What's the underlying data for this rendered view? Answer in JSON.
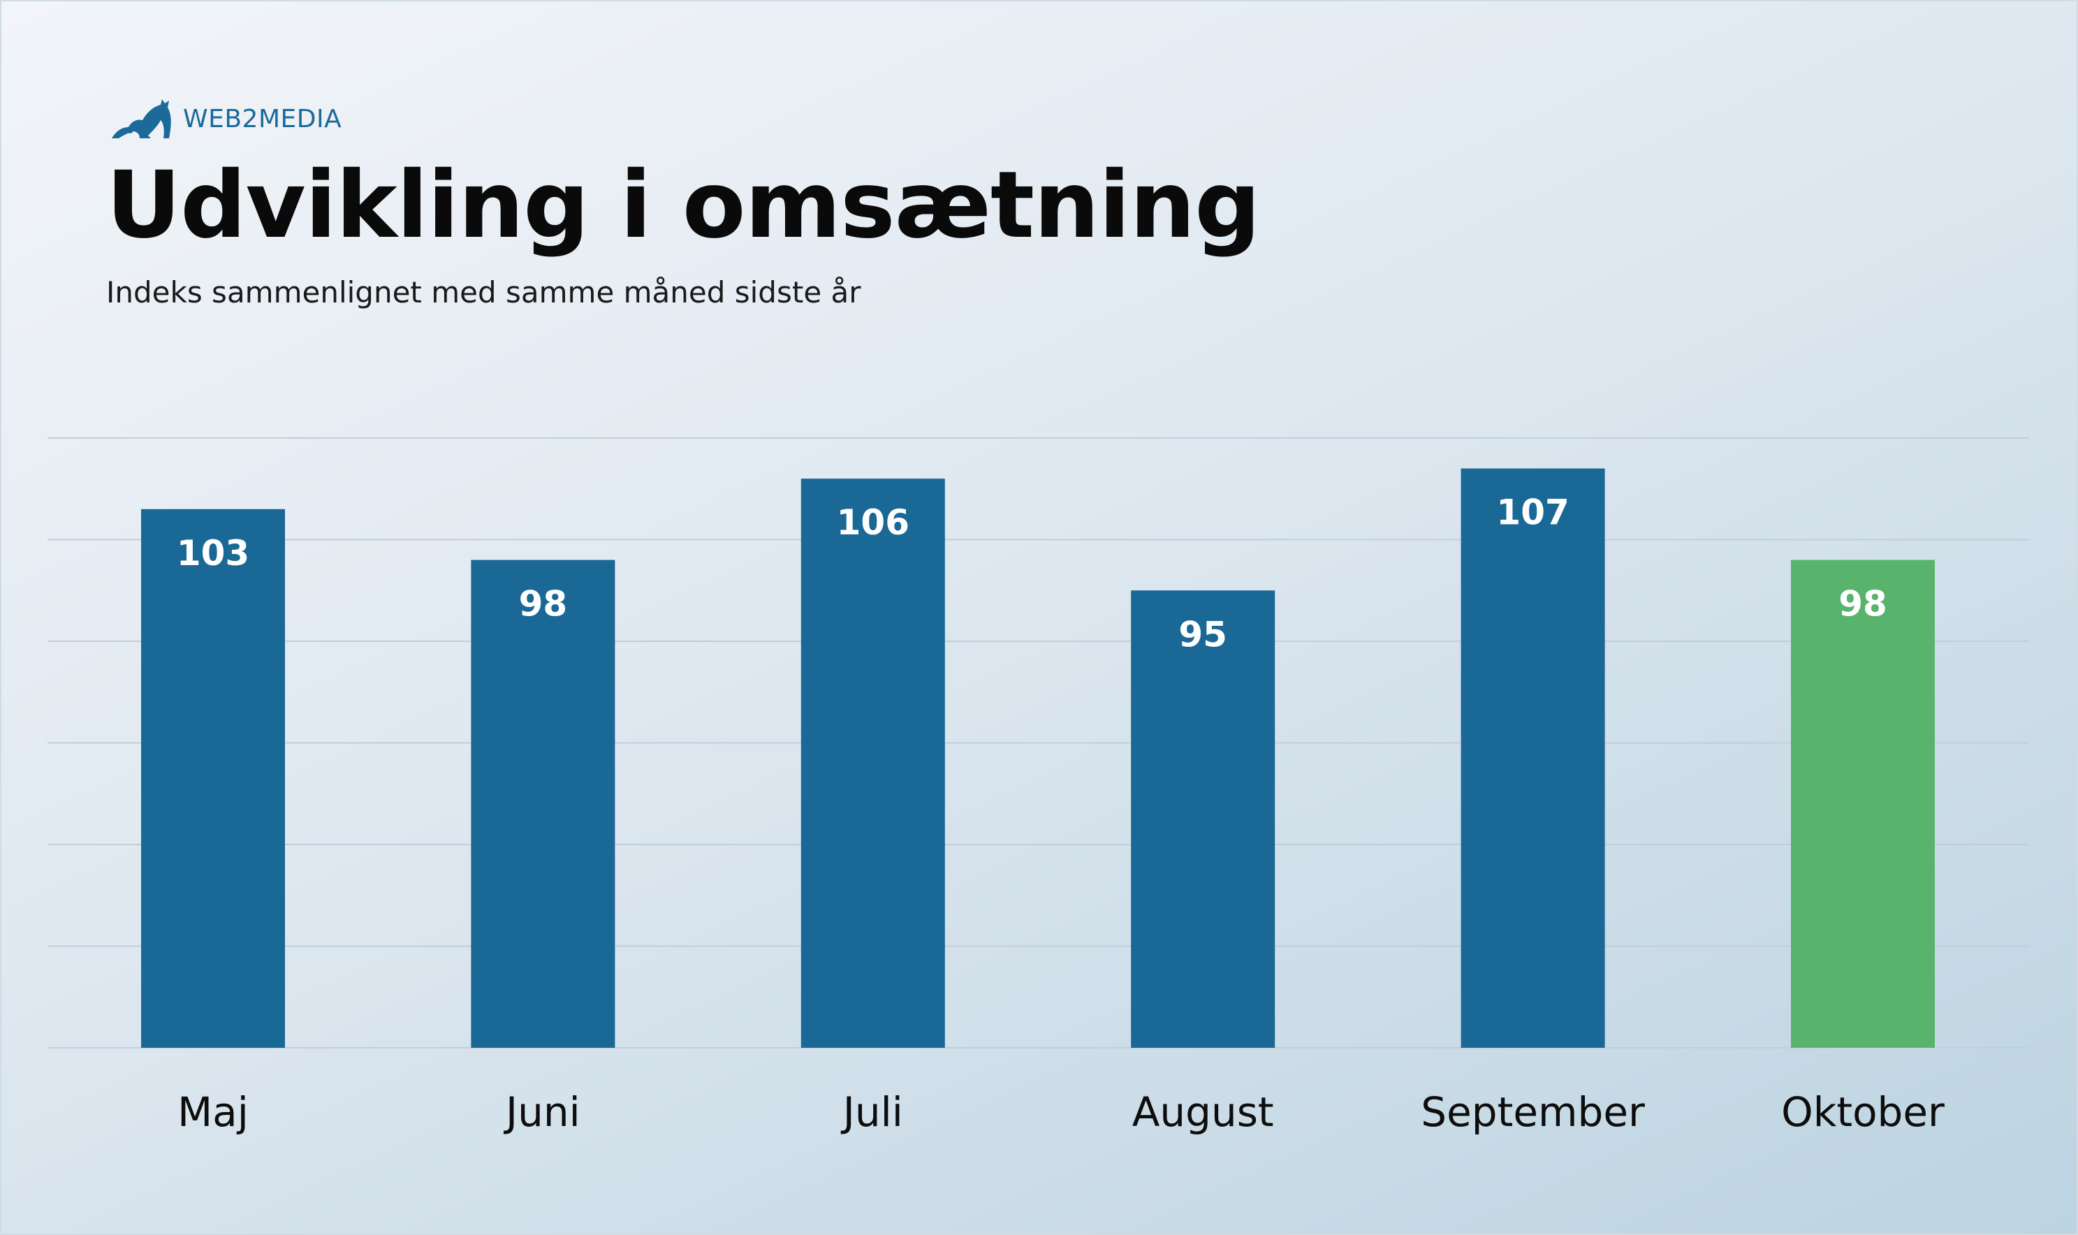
{
  "brand": {
    "name": "WEB2MEDIA",
    "icon": "cat-logo-icon",
    "color": "#1b6a9a"
  },
  "header": {
    "title": "Udvikling i omsætning",
    "subtitle": "Indeks sammenlignet med samme måned sidste år"
  },
  "chart_data": {
    "type": "bar",
    "title": "Udvikling i omsætning",
    "subtitle": "Indeks sammenlignet med samme måned sidste år",
    "categories": [
      "Maj",
      "Juni",
      "Juli",
      "August",
      "September",
      "Oktober"
    ],
    "values": [
      103,
      98,
      106,
      95,
      107,
      98
    ],
    "data_labels": [
      "103",
      "98",
      "106",
      "95",
      "107",
      "98"
    ],
    "ylim": [
      50,
      110
    ],
    "grid": true,
    "gridline_values": [
      50,
      60,
      70,
      80,
      90,
      100,
      110
    ],
    "y_tick_labels_shown": false,
    "legend": "none",
    "xlabel": "",
    "ylabel": "",
    "colors": {
      "default": "#1a6896",
      "highlight": "#58b46c",
      "highlight_category": "Oktober",
      "grid": "#c2ced9",
      "data_label": "#ffffff"
    }
  }
}
